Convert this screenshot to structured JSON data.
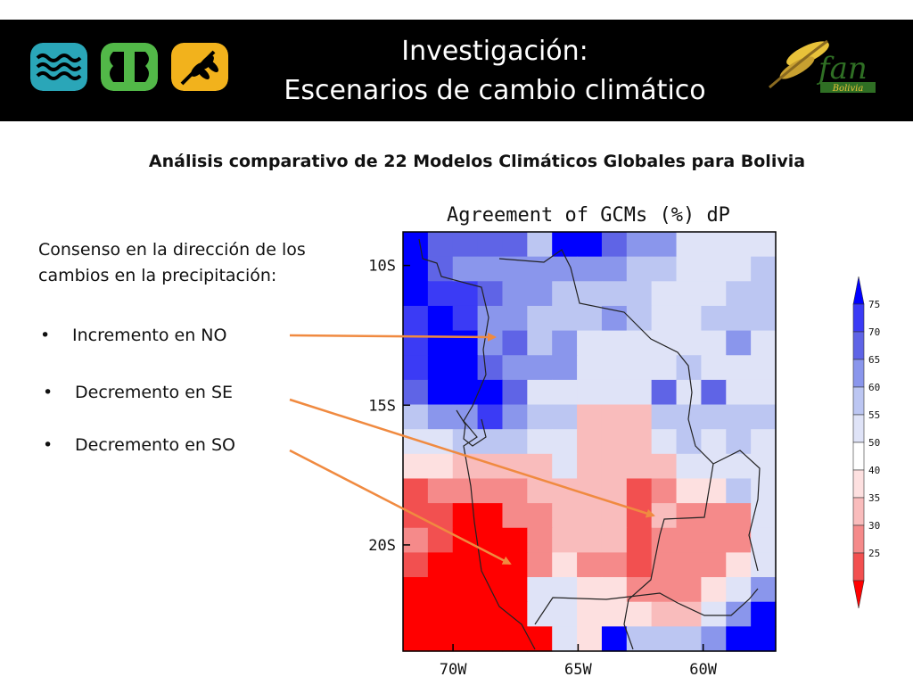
{
  "header": {
    "title_line1": "Investigación:",
    "title_line2": "Escenarios de cambio climático",
    "colors": {
      "background": "#000000",
      "logo_water": "#2aa6b8",
      "logo_leaf": "#52b848",
      "logo_wheat": "#f2b21c"
    },
    "logos": [
      "water-waves-icon",
      "leaf-icon",
      "wheat-icon",
      "fan-bolivia-logo"
    ],
    "fan_logo_text": "fan",
    "fan_logo_sub": "Bolivia"
  },
  "subtitle": "Análisis comparativo de 22 Modelos Climáticos Globales para Bolivia",
  "left_text": {
    "intro": "Consenso en la dirección de los cambios en la precipitación:",
    "bullets": [
      "Incremento en NO",
      "Decremento en SE",
      "Decremento en SO"
    ]
  },
  "chart_data": {
    "type": "heatmap",
    "title": "Agreement of GCMs (%) dP",
    "xlabel": "",
    "ylabel": "",
    "x_ticks": [
      "70W",
      "65W",
      "60W"
    ],
    "y_ticks": [
      "10S",
      "15S",
      "20S"
    ],
    "x_range_deg": [
      -72,
      -57.1
    ],
    "y_range_deg": [
      -8.8,
      -23.8
    ],
    "grid_rows_north_to_south": 17,
    "grid_cols_west_to_east": 15,
    "legend": {
      "position": "right",
      "labels": [
        "75",
        "70",
        "65",
        "60",
        "55",
        "50",
        "40",
        "35",
        "30",
        "25"
      ],
      "class_colors": [
        "#0000ff",
        "#3b3bf5",
        "#5f64e6",
        "#8a96ec",
        "#bcc6f2",
        "#dfe3f7",
        "#ffffff",
        "#fde0e0",
        "#f9bcbc",
        "#f58a8a",
        "#f25050",
        "#ff0000"
      ]
    },
    "values_percent_rows": [
      [
        75,
        65,
        65,
        65,
        65,
        55,
        75,
        75,
        65,
        60,
        60,
        50,
        50,
        50,
        50
      ],
      [
        75,
        65,
        60,
        60,
        60,
        60,
        60,
        60,
        60,
        55,
        55,
        50,
        50,
        50,
        55
      ],
      [
        75,
        70,
        70,
        65,
        60,
        60,
        55,
        55,
        55,
        55,
        50,
        50,
        50,
        55,
        55
      ],
      [
        70,
        75,
        70,
        60,
        60,
        55,
        55,
        55,
        60,
        55,
        50,
        50,
        55,
        55,
        55
      ],
      [
        70,
        75,
        75,
        60,
        65,
        55,
        60,
        50,
        50,
        50,
        50,
        50,
        50,
        60,
        50
      ],
      [
        70,
        75,
        75,
        65,
        60,
        60,
        60,
        50,
        50,
        50,
        50,
        55,
        50,
        50,
        50
      ],
      [
        65,
        75,
        75,
        75,
        65,
        50,
        50,
        50,
        50,
        50,
        65,
        50,
        65,
        50,
        50
      ],
      [
        55,
        60,
        60,
        70,
        60,
        55,
        55,
        40,
        40,
        40,
        55,
        55,
        55,
        55,
        55
      ],
      [
        50,
        50,
        55,
        55,
        55,
        50,
        50,
        40,
        40,
        40,
        50,
        55,
        50,
        55,
        50
      ],
      [
        45,
        45,
        40,
        40,
        40,
        40,
        50,
        40,
        40,
        40,
        40,
        50,
        50,
        50,
        50
      ],
      [
        30,
        35,
        35,
        35,
        35,
        40,
        40,
        40,
        40,
        30,
        35,
        45,
        45,
        55,
        50
      ],
      [
        30,
        30,
        25,
        25,
        35,
        35,
        40,
        40,
        40,
        30,
        40,
        35,
        35,
        35,
        50
      ],
      [
        35,
        30,
        25,
        25,
        25,
        35,
        40,
        40,
        40,
        30,
        35,
        35,
        35,
        35,
        50
      ],
      [
        30,
        25,
        25,
        25,
        25,
        35,
        45,
        35,
        35,
        30,
        35,
        35,
        35,
        45,
        50
      ],
      [
        25,
        25,
        25,
        25,
        25,
        50,
        50,
        45,
        45,
        35,
        35,
        35,
        45,
        50,
        60
      ],
      [
        25,
        25,
        25,
        25,
        25,
        50,
        50,
        45,
        45,
        45,
        40,
        40,
        50,
        60,
        75
      ],
      [
        25,
        25,
        25,
        25,
        25,
        25,
        50,
        45,
        75,
        55,
        55,
        55,
        60,
        75,
        75
      ]
    ],
    "annotation_arrow_color": "#f08a40"
  }
}
